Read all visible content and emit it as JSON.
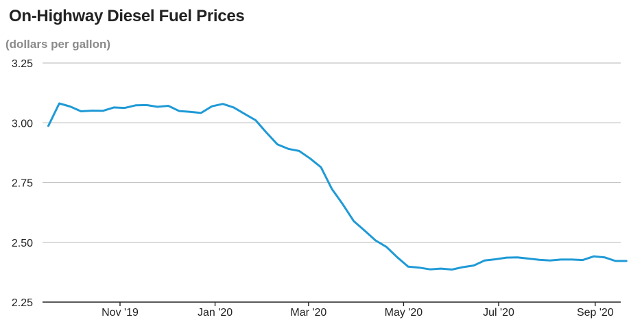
{
  "chart_data": {
    "type": "line",
    "title": "On-Highway Diesel Fuel Prices",
    "subtitle": "(dollars per gallon)",
    "xlabel": "",
    "ylabel": "",
    "ylim": [
      2.25,
      3.25
    ],
    "yticks": [
      "3.25",
      "3.00",
      "2.75",
      "2.50",
      "2.25"
    ],
    "xticks": [
      "Nov '19",
      "Jan '20",
      "Mar '20",
      "May '20",
      "Jul '20",
      "Sep '20"
    ],
    "grid": true,
    "series": [
      {
        "color": "#1f9ad6",
        "x": [
          "2019-09-16",
          "2019-09-23",
          "2019-09-30",
          "2019-10-07",
          "2019-10-14",
          "2019-10-21",
          "2019-10-28",
          "2019-11-04",
          "2019-11-11",
          "2019-11-18",
          "2019-11-25",
          "2019-12-02",
          "2019-12-09",
          "2019-12-16",
          "2019-12-23",
          "2019-12-30",
          "2020-01-06",
          "2020-01-13",
          "2020-01-20",
          "2020-01-27",
          "2020-02-03",
          "2020-02-10",
          "2020-02-17",
          "2020-02-24",
          "2020-03-02",
          "2020-03-09",
          "2020-03-16",
          "2020-03-23",
          "2020-03-30",
          "2020-04-06",
          "2020-04-13",
          "2020-04-20",
          "2020-04-27",
          "2020-05-04",
          "2020-05-11",
          "2020-05-18",
          "2020-05-25",
          "2020-06-01",
          "2020-06-08",
          "2020-06-15",
          "2020-06-22",
          "2020-06-29",
          "2020-07-06",
          "2020-07-13",
          "2020-07-20",
          "2020-07-27",
          "2020-08-03",
          "2020-08-10",
          "2020-08-17",
          "2020-08-24",
          "2020-08-31",
          "2020-09-07",
          "2020-09-14",
          "2020-09-21"
        ],
        "values": [
          2.987,
          3.081,
          3.068,
          3.048,
          3.051,
          3.05,
          3.064,
          3.062,
          3.073,
          3.074,
          3.067,
          3.071,
          3.049,
          3.046,
          3.041,
          3.069,
          3.079,
          3.064,
          3.037,
          3.011,
          2.959,
          2.91,
          2.891,
          2.882,
          2.851,
          2.814,
          2.723,
          2.659,
          2.589,
          2.549,
          2.508,
          2.481,
          2.437,
          2.398,
          2.394,
          2.387,
          2.39,
          2.386,
          2.396,
          2.403,
          2.424,
          2.429,
          2.436,
          2.437,
          2.432,
          2.427,
          2.424,
          2.428,
          2.428,
          2.426,
          2.441,
          2.437,
          2.422,
          2.422
        ]
      }
    ]
  }
}
